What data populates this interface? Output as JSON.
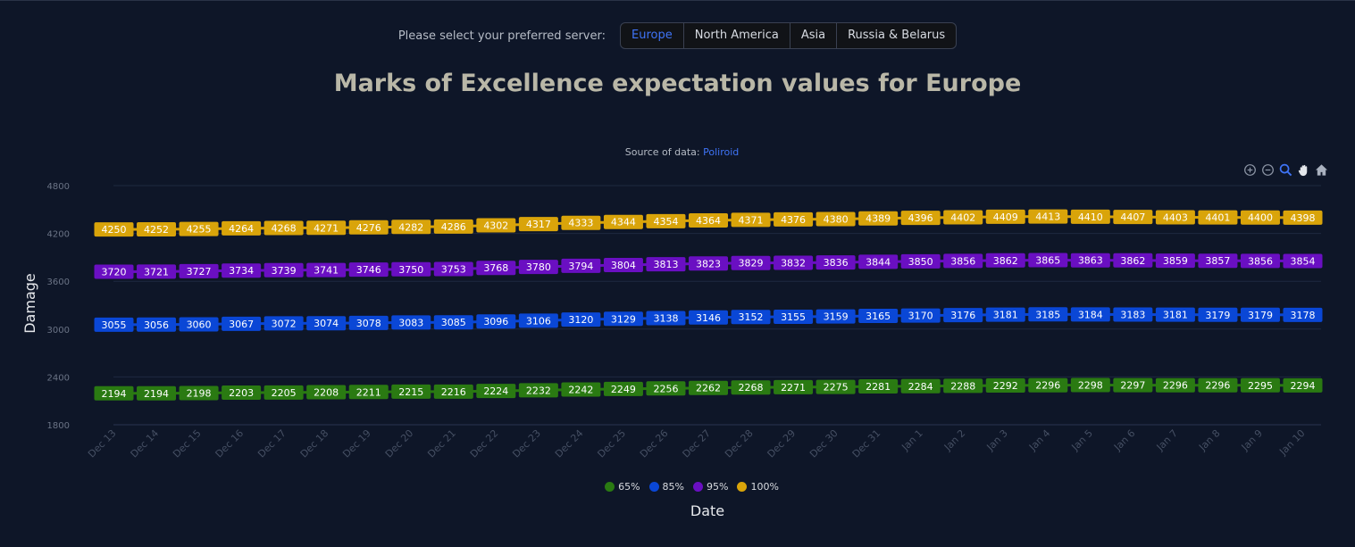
{
  "server": {
    "prompt": "Please select your preferred server:",
    "options": [
      "Europe",
      "North America",
      "Asia",
      "Russia & Belarus"
    ],
    "selected": "Europe"
  },
  "title": "Marks of Excellence expectation values for Europe",
  "source": {
    "label": "Source of data:",
    "link": "Poliroid"
  },
  "toolbar": [
    "zoom-in-icon",
    "zoom-out-icon",
    "zoom-icon",
    "pan-icon",
    "home-icon"
  ],
  "colors": {
    "background": "#0e1628",
    "accent": "#3f74f7"
  },
  "chart_data": {
    "type": "line",
    "xlabel": "Date",
    "ylabel": "Damage",
    "ylim": [
      1800,
      4800
    ],
    "yticks": [
      1800,
      2400,
      3000,
      3600,
      4200,
      4800
    ],
    "grid": true,
    "legend_position": "bottom",
    "x": [
      "Dec 13",
      "Dec 14",
      "Dec 15",
      "Dec 16",
      "Dec 17",
      "Dec 18",
      "Dec 19",
      "Dec 20",
      "Dec 21",
      "Dec 22",
      "Dec 23",
      "Dec 24",
      "Dec 25",
      "Dec 26",
      "Dec 27",
      "Dec 28",
      "Dec 29",
      "Dec 30",
      "Dec 31",
      "Jan 1",
      "Jan 2",
      "Jan 3",
      "Jan 4",
      "Jan 5",
      "Jan 6",
      "Jan 7",
      "Jan 8",
      "Jan 9",
      "Jan 10"
    ],
    "series": [
      {
        "name": "65%",
        "color": "#2a7a12",
        "values": [
          2194,
          2194,
          2198,
          2203,
          2205,
          2208,
          2211,
          2215,
          2216,
          2224,
          2232,
          2242,
          2249,
          2256,
          2262,
          2268,
          2271,
          2275,
          2281,
          2284,
          2288,
          2292,
          2296,
          2298,
          2297,
          2296,
          2296,
          2295,
          2294
        ]
      },
      {
        "name": "85%",
        "color": "#0a47d6",
        "values": [
          3055,
          3056,
          3060,
          3067,
          3072,
          3074,
          3078,
          3083,
          3085,
          3096,
          3106,
          3120,
          3129,
          3138,
          3146,
          3152,
          3155,
          3159,
          3165,
          3170,
          3176,
          3181,
          3185,
          3184,
          3183,
          3181,
          3179,
          3179,
          3178
        ]
      },
      {
        "name": "95%",
        "color": "#6a0fc2",
        "values": [
          3720,
          3721,
          3727,
          3734,
          3739,
          3741,
          3746,
          3750,
          3753,
          3768,
          3780,
          3794,
          3804,
          3813,
          3823,
          3829,
          3832,
          3836,
          3844,
          3850,
          3856,
          3862,
          3865,
          3863,
          3862,
          3859,
          3857,
          3856,
          3854
        ]
      },
      {
        "name": "100%",
        "color": "#d9a40a",
        "values": [
          4250,
          4252,
          4255,
          4264,
          4268,
          4271,
          4276,
          4282,
          4286,
          4302,
          4317,
          4333,
          4344,
          4354,
          4364,
          4371,
          4376,
          4380,
          4389,
          4396,
          4402,
          4409,
          4413,
          4410,
          4407,
          4403,
          4401,
          4400,
          4398
        ]
      }
    ]
  }
}
